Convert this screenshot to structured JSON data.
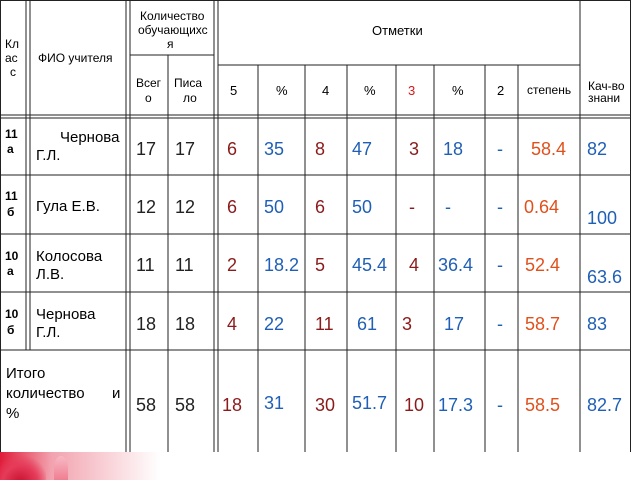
{
  "header": {
    "class_col": [
      "Кл",
      "ас",
      "с"
    ],
    "teacher_col": "ФИО учителя",
    "students_group": [
      "Количество",
      "обучающихс",
      "я"
    ],
    "total": [
      "Всег",
      "о"
    ],
    "wrote": [
      "Писа",
      "ло"
    ],
    "grades_group": "Отметки",
    "g5": "5",
    "p5": "%",
    "g4": "4",
    "p4": "%",
    "g3": "3",
    "p3": "%",
    "g2": "2",
    "degree": "степень",
    "quality": [
      "Кач-во",
      "знани"
    ]
  },
  "rows": [
    {
      "cls": [
        "11",
        "а"
      ],
      "teacher": [
        "Чернова",
        "Г.Л."
      ],
      "total": "17",
      "wrote": "17",
      "n5": "6",
      "p5": "35",
      "n4": "8",
      "p4": "47",
      "n3": "3",
      "p3": "18",
      "n2": "-",
      "degree": "58.4",
      "quality": "82"
    },
    {
      "cls": [
        "11",
        "б"
      ],
      "teacher": [
        "Гула Е.В."
      ],
      "total": "12",
      "wrote": "12",
      "n5": "6",
      "p5": "50",
      "n4": "6",
      "p4": "50",
      "n3": "-",
      "p3": "-",
      "n2": "-",
      "degree": "0.64",
      "quality": "100"
    },
    {
      "cls": [
        "10",
        "а"
      ],
      "teacher": [
        "Колосова",
        "Л.В."
      ],
      "total": "11",
      "wrote": "11",
      "n5": "2",
      "p5": "18.2",
      "n4": "5",
      "p4": "45.4",
      "n3": "4",
      "p3": "36.4",
      "n2": "-",
      "degree": "52.4",
      "quality": "63.6"
    },
    {
      "cls": [
        "10",
        "б"
      ],
      "teacher": [
        "Чернова",
        "Г.Л."
      ],
      "total": "18",
      "wrote": "18",
      "n5": "4",
      "p5": "22",
      "n4": "11",
      "p4": "61",
      "n3": "3",
      "p3": "17",
      "n2": "-",
      "degree": "58.7",
      "quality": "83"
    }
  ],
  "total_row": {
    "label": [
      "Итого",
      "количество",
      "и",
      "%"
    ],
    "total": "58",
    "wrote": "58",
    "n5": "18",
    "p5": "31",
    "n4": "30",
    "p4": "51.7",
    "n3": "10",
    "p3": "17.3",
    "n2": "-",
    "degree": "58.5",
    "quality": "82.7"
  }
}
